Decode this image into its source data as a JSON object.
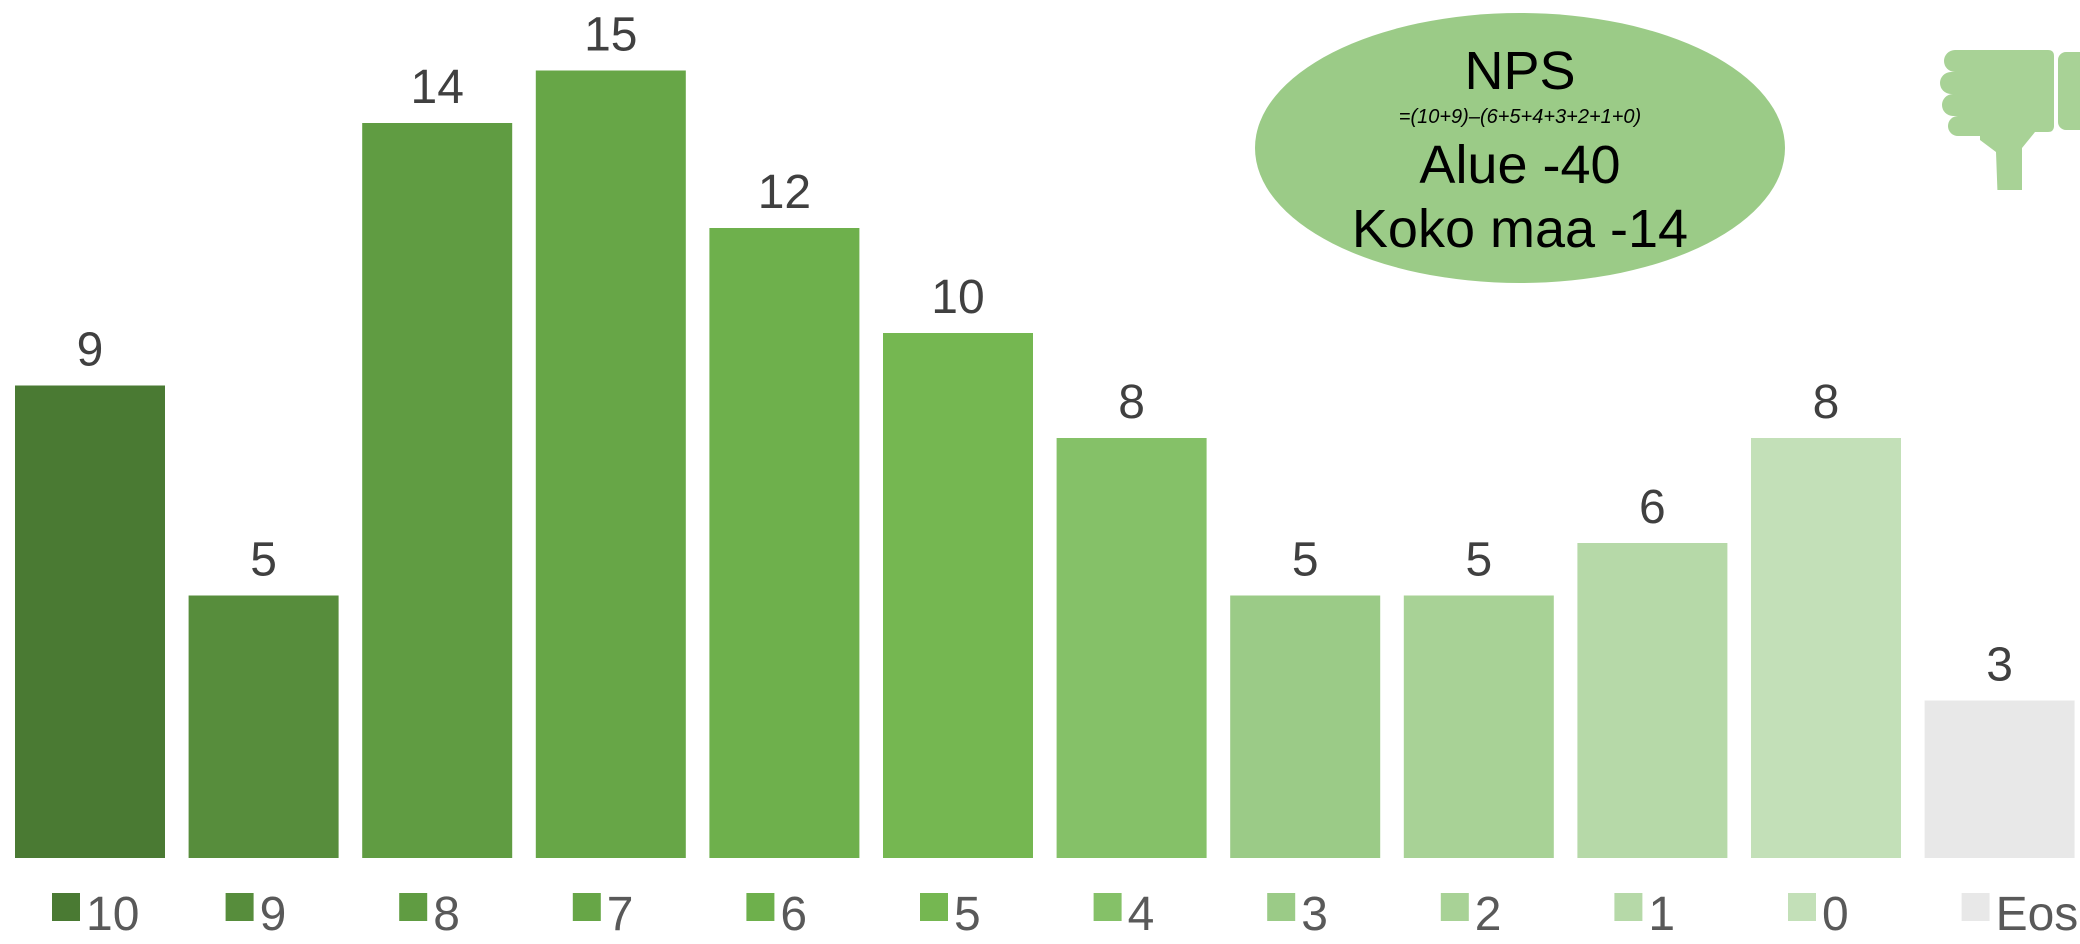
{
  "chart_data": {
    "type": "bar",
    "categories": [
      "10",
      "9",
      "8",
      "7",
      "6",
      "5",
      "4",
      "3",
      "2",
      "1",
      "0",
      "Eos"
    ],
    "values": [
      9,
      5,
      14,
      15,
      12,
      10,
      8,
      5,
      5,
      6,
      8,
      3
    ],
    "colors": [
      "#4a7a33",
      "#578d3c",
      "#609c42",
      "#67a647",
      "#6eb04c",
      "#75b751",
      "#85c168",
      "#9bcb87",
      "#a8d296",
      "#b6d9a8",
      "#c3e0b8",
      "#e8e8e8"
    ],
    "ylim": [
      0,
      16.5
    ],
    "grid": false,
    "legend_position": "bottom",
    "data_labels": true
  },
  "nps_box": {
    "title": "NPS",
    "formula": "=(10+9)–(6+5+4+3+2+1+0)",
    "area_line": "Alue -40",
    "country_line": "Koko maa -14",
    "color": "#9bcb87"
  },
  "icon": {
    "name": "thumbs-down-icon",
    "color": "#a8d296"
  }
}
